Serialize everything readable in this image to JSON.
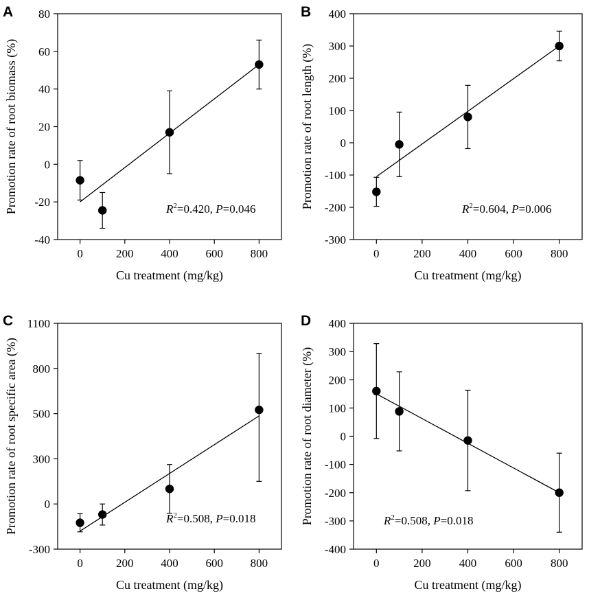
{
  "figure": {
    "panels": [
      {
        "letter": "A",
        "xlabel": "Cu treatment (mg/kg)",
        "ylabel": "Promotion rate of root biomass (%)",
        "stats": {
          "r_text": "R",
          "sup": "2",
          "r_value": "=0.420, ",
          "p_text": "P",
          "p_value": "=0.046"
        }
      },
      {
        "letter": "B",
        "xlabel": "Cu treatment (mg/kg)",
        "ylabel": "Promotion rate of root length (%)",
        "stats": {
          "r_text": "R",
          "sup": "2",
          "r_value": "=0.604, ",
          "p_text": "P",
          "p_value": "=0.006"
        }
      },
      {
        "letter": "C",
        "xlabel": "Cu treatment (mg/kg)",
        "ylabel": "Promotion rate of root specific area (%)",
        "stats": {
          "r_text": "R",
          "sup": "2",
          "r_value": "=0.508, ",
          "p_text": "P",
          "p_value": "=0.018"
        }
      },
      {
        "letter": "D",
        "xlabel": "Cu treatment (mg/kg)",
        "ylabel": "Promotion rate of root diameter (%)",
        "stats": {
          "r_text": "R",
          "sup": "2",
          "r_value": "=0.508, ",
          "p_text": "P",
          "p_value": "=0.018"
        }
      }
    ]
  },
  "chart_data": [
    {
      "panel": "A",
      "type": "scatter",
      "xlabel": "Cu treatment (mg/kg)",
      "ylabel": "Promotion rate of root biomass (%)",
      "xlim": [
        -100,
        900
      ],
      "ylim": [
        -40,
        80
      ],
      "xticks": [
        0,
        200,
        400,
        600,
        800
      ],
      "yticks": [
        -40,
        -20,
        0,
        20,
        40,
        60,
        80
      ],
      "ytick_labels": [
        "-40",
        "-20",
        "0",
        "20",
        "40",
        "60",
        "80"
      ],
      "x": [
        0,
        100,
        400,
        800
      ],
      "y": [
        -8.5,
        -24.5,
        17,
        53
      ],
      "error": [
        10.5,
        9.5,
        22,
        13
      ],
      "fit_line": {
        "x": [
          0,
          800
        ],
        "y": [
          -20,
          53
        ]
      },
      "r2": 0.42,
      "p": 0.046,
      "annotation_position": "bottom-right"
    },
    {
      "panel": "B",
      "type": "scatter",
      "xlabel": "Cu treatment (mg/kg)",
      "ylabel": "Promotion rate of root length (%)",
      "xlim": [
        -100,
        900
      ],
      "ylim": [
        -300,
        400
      ],
      "xticks": [
        0,
        200,
        400,
        600,
        800
      ],
      "yticks": [
        -300,
        -200,
        -100,
        0,
        100,
        200,
        300,
        400
      ],
      "ytick_labels": [
        "-300",
        "-200",
        "-100",
        "0",
        "100",
        "200",
        "300",
        "400"
      ],
      "x": [
        0,
        100,
        400,
        800
      ],
      "y": [
        -152,
        -5,
        80,
        300
      ],
      "error": [
        45,
        100,
        98,
        46
      ],
      "fit_line": {
        "x": [
          0,
          800
        ],
        "y": [
          -105,
          300
        ]
      },
      "r2": 0.604,
      "p": 0.006,
      "annotation_position": "bottom-right"
    },
    {
      "panel": "C",
      "type": "scatter",
      "xlabel": "Cu treatment (mg/kg)",
      "ylabel": "Promotion rate of root specific area (%)",
      "xlim": [
        -100,
        900
      ],
      "ylim": [
        -300,
        1100
      ],
      "xticks": [
        0,
        200,
        400,
        600,
        800
      ],
      "yticks": [
        -300,
        0,
        300,
        500,
        800,
        1100
      ],
      "ytick_labels": [
        "-300",
        "0",
        "300",
        "500",
        "800",
        "1100"
      ],
      "y_axis_note": "tick labels printed at evenly spaced positions",
      "x": [
        0,
        100,
        400,
        800
      ],
      "y": [
        -125,
        -70,
        100,
        525
      ],
      "error": [
        60,
        70,
        162,
        375
      ],
      "fit_line": {
        "x": [
          0,
          800
        ],
        "y": [
          -180,
          490
        ]
      },
      "r2": 0.508,
      "p": 0.018,
      "annotation_position": "bottom-right"
    },
    {
      "panel": "D",
      "type": "scatter",
      "xlabel": "Cu treatment (mg/kg)",
      "ylabel": "Promotion rate of root diameter (%)",
      "xlim": [
        -100,
        900
      ],
      "ylim": [
        -400,
        400
      ],
      "xticks": [
        0,
        200,
        400,
        600,
        800
      ],
      "yticks": [
        -400,
        -300,
        -200,
        -100,
        0,
        100,
        200,
        300,
        400
      ],
      "ytick_labels": [
        "-400",
        "-300",
        "-200",
        "-100",
        "0",
        "100",
        "200",
        "300",
        "400"
      ],
      "x": [
        0,
        100,
        400,
        800
      ],
      "y": [
        160,
        88,
        -15,
        -200
      ],
      "error": [
        168,
        140,
        178,
        140
      ],
      "fit_line": {
        "x": [
          0,
          800
        ],
        "y": [
          150,
          -200
        ]
      },
      "r2": 0.508,
      "p": 0.018,
      "annotation_position": "bottom-left"
    }
  ]
}
